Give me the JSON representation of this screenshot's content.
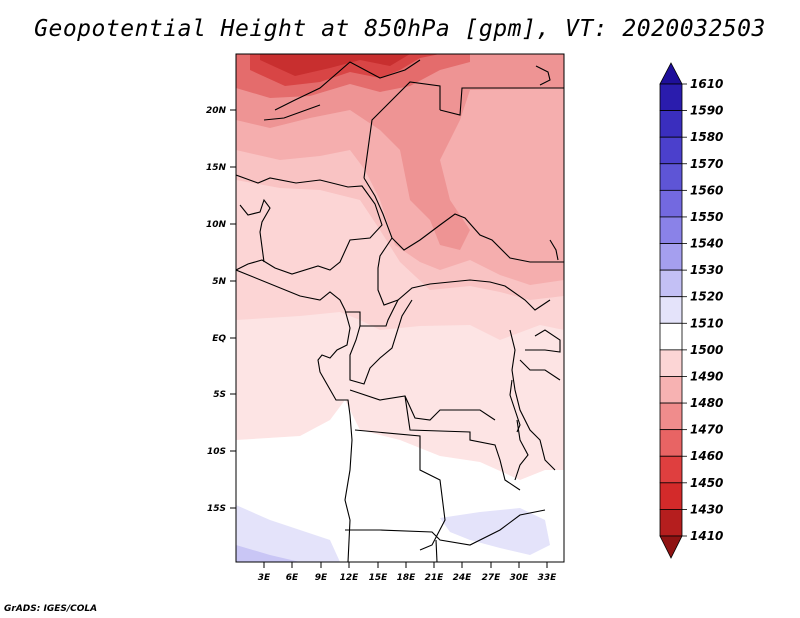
{
  "title": "Geopotential Height at 850hPa [gpm], VT: 2020032503",
  "footer": "GrADS: IGES/COLA",
  "chart_data": {
    "type": "heatmap",
    "variable": "Geopotential Height",
    "level": "850hPa",
    "units": "gpm",
    "valid_time": "2020032503",
    "lon_range": [
      0,
      34.5
    ],
    "lat_range": [
      -20,
      25
    ],
    "lat_ticks": [
      "20N",
      "15N",
      "10N",
      "5N",
      "EQ",
      "5S",
      "10S",
      "15S"
    ],
    "lon_ticks": [
      "3E",
      "6E",
      "9E",
      "12E",
      "15E",
      "18E",
      "21E",
      "24E",
      "27E",
      "30E",
      "33E"
    ],
    "colorbar": {
      "levels": [
        "1610",
        "1590",
        "1580",
        "1570",
        "1560",
        "1550",
        "1540",
        "1530",
        "1520",
        "1510",
        "1500",
        "1490",
        "1480",
        "1470",
        "1460",
        "1450",
        "1430",
        "1410"
      ],
      "colors": [
        "#1e0f9a",
        "#2a1cad",
        "#3a2ebe",
        "#4b40cc",
        "#5e55d6",
        "#7369e0",
        "#8a82e8",
        "#a59fef",
        "#c3c0f5",
        "#e4e3fa",
        "#ffffff",
        "#fcd5d5",
        "#f7b2b2",
        "#f08c8c",
        "#e86464",
        "#df3f3f",
        "#d32a2a",
        "#b51e1e",
        "#8f1313"
      ]
    }
  }
}
